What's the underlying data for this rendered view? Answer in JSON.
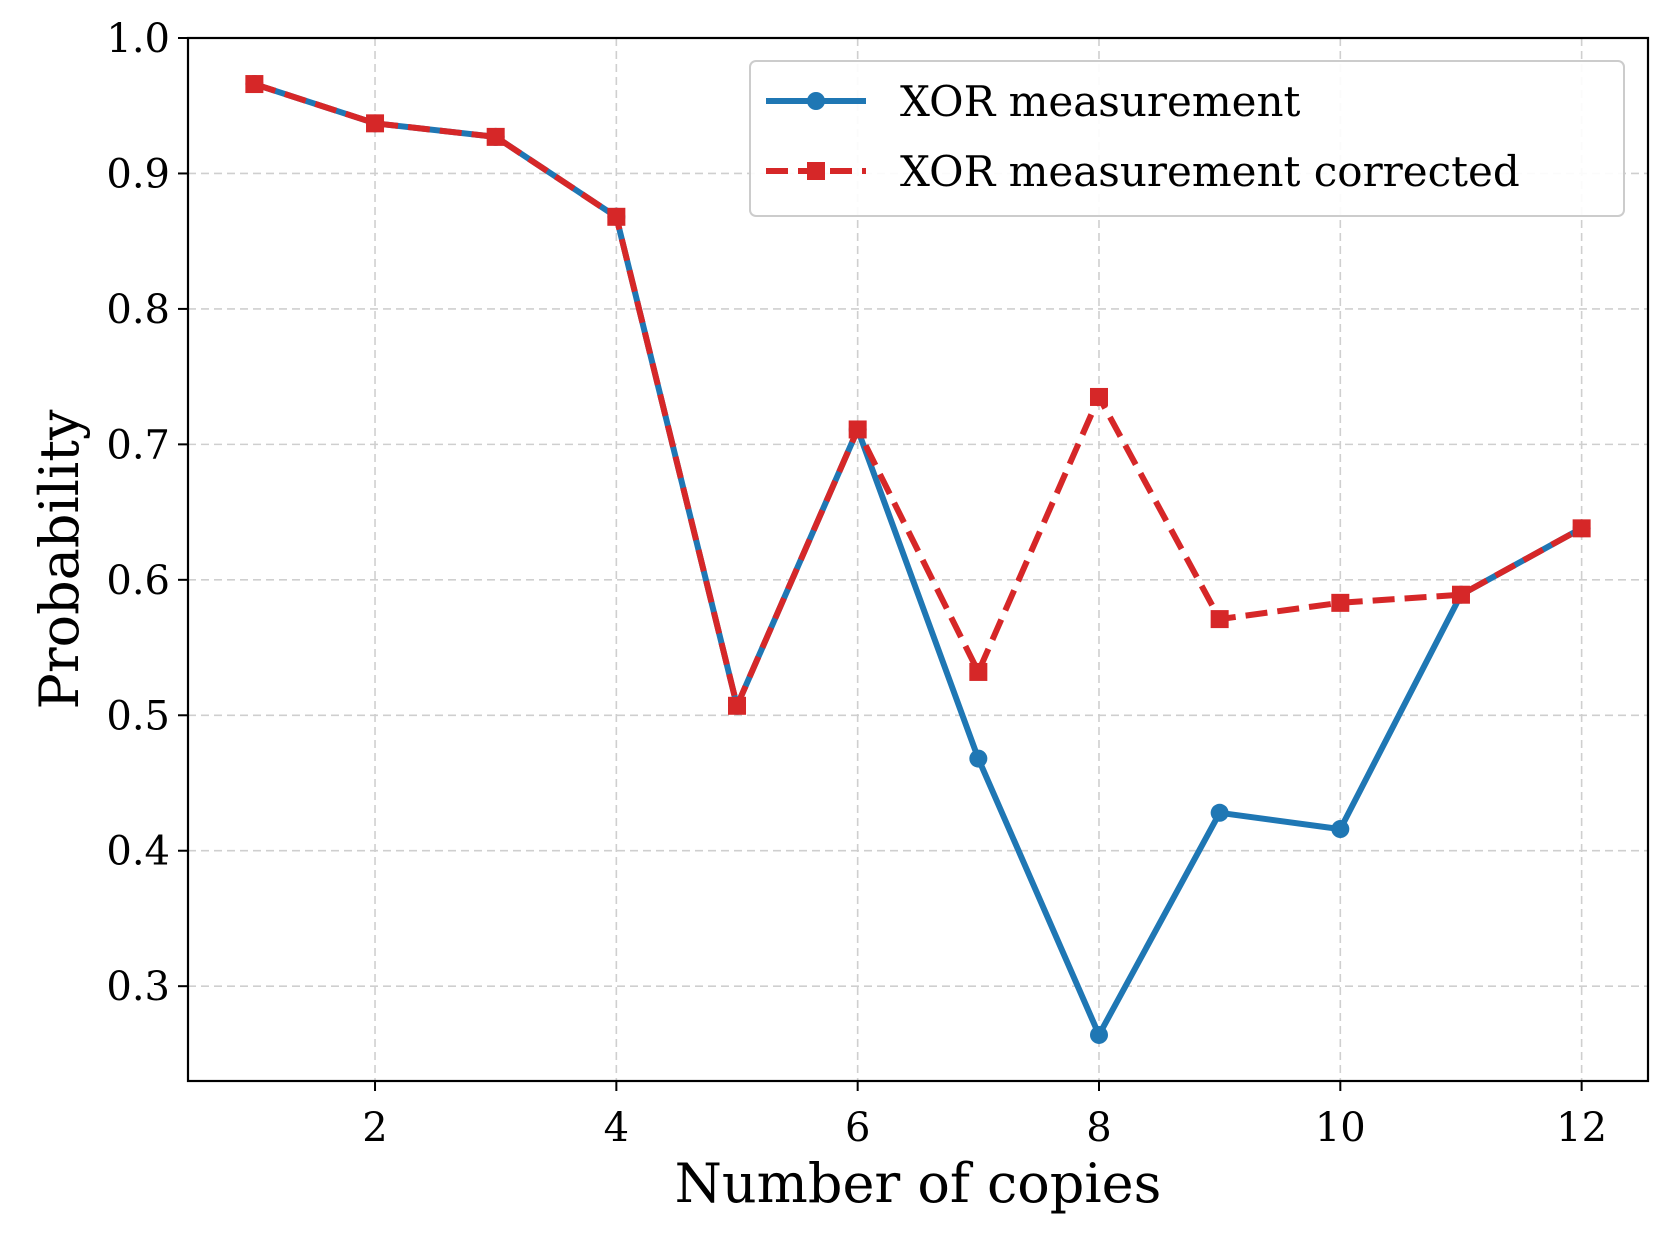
{
  "chart_data": {
    "type": "line",
    "xlabel": "Number of copies",
    "ylabel": "Probability",
    "xlim": [
      0.45,
      12.55
    ],
    "ylim": [
      0.23,
      1.0
    ],
    "x_ticks": [
      2,
      4,
      6,
      8,
      10,
      12
    ],
    "y_ticks": [
      0.3,
      0.4,
      0.5,
      0.6,
      0.7,
      0.8,
      0.9,
      1.0
    ],
    "x_tick_labels": [
      "2",
      "4",
      "6",
      "8",
      "10",
      "12"
    ],
    "y_tick_labels": [
      "0.3",
      "0.4",
      "0.5",
      "0.6",
      "0.7",
      "0.8",
      "0.9",
      "1.0"
    ],
    "grid": true,
    "legend_position": "top-right",
    "x": [
      1,
      2,
      3,
      4,
      5,
      6,
      7,
      8,
      9,
      10,
      11,
      12
    ],
    "series": [
      {
        "name": "XOR measurement",
        "color": "#1f77b4",
        "line_style": "solid",
        "marker": "circle",
        "values": [
          0.966,
          0.937,
          0.927,
          0.868,
          0.507,
          0.711,
          0.468,
          0.264,
          0.428,
          0.416,
          0.589,
          0.638
        ]
      },
      {
        "name": "XOR measurement corrected",
        "color": "#d62728",
        "line_style": "dashed",
        "marker": "square",
        "values": [
          0.966,
          0.937,
          0.927,
          0.868,
          0.507,
          0.711,
          0.532,
          0.735,
          0.571,
          0.583,
          0.589,
          0.638
        ]
      }
    ]
  }
}
